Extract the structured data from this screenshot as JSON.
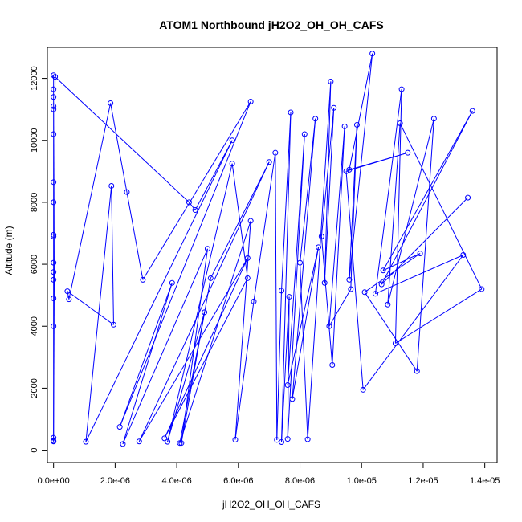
{
  "chart_data": {
    "type": "line",
    "title": "ATOM1 Northbound jH2O2_OH_OH_CAFS",
    "xlabel": "jH2O2_OH_OH_CAFS",
    "ylabel": "Altitude (m)",
    "xlim": [
      -2e-07,
      1.44e-05
    ],
    "ylim": [
      -400,
      13000
    ],
    "xticks": [
      0,
      2e-06,
      4e-06,
      6e-06,
      8e-06,
      1e-05,
      1.2e-05,
      1.4e-05
    ],
    "xtick_labels": [
      "0.0e+00",
      "2.0e-06",
      "4.0e-06",
      "6.0e-06",
      "8.0e-06",
      "1.0e-05",
      "1.2e-05",
      "1.4e-05"
    ],
    "yticks": [
      0,
      2000,
      4000,
      6000,
      8000,
      10000,
      12000
    ],
    "ytick_labels": [
      "0",
      "2000",
      "4000",
      "6000",
      "8000",
      "10000",
      "12000"
    ],
    "grid": false,
    "series": [
      {
        "color": "#0000ff",
        "marker": "open-circle",
        "points": [
          [
            0.0,
            12100
          ],
          [
            0.0,
            11650
          ],
          [
            0.0,
            11400
          ],
          [
            0.0,
            11100
          ],
          [
            0.0,
            11000
          ],
          [
            0.0,
            10200
          ],
          [
            0.0,
            8650
          ],
          [
            0.0,
            8000
          ],
          [
            0.0,
            6950
          ],
          [
            0.0,
            6900
          ],
          [
            0.0,
            6050
          ],
          [
            0.0,
            5750
          ],
          [
            0.0,
            5500
          ],
          [
            0.0,
            4900
          ],
          [
            0.0,
            4000
          ],
          [
            0.0,
            400
          ],
          [
            0.0,
            300
          ],
          [
            0.0,
            280
          ],
          [
            5e-08,
            12050
          ],
          [
            4.4e-06,
            8000
          ],
          [
            4.6e-06,
            7750
          ],
          [
            5.8e-06,
            10000
          ],
          [
            1.05e-06,
            270
          ],
          [
            1.88e-06,
            8530
          ],
          [
            1.95e-06,
            4050
          ],
          [
            4.5e-07,
            5130
          ],
          [
            5e-07,
            4870
          ],
          [
            1.85e-06,
            11200
          ],
          [
            2.38e-06,
            8330
          ],
          [
            2.9e-06,
            5500
          ],
          [
            6.4e-06,
            11250
          ],
          [
            2.15e-06,
            750
          ],
          [
            3.85e-06,
            5400
          ],
          [
            2.25e-06,
            200
          ],
          [
            5e-06,
            6500
          ],
          [
            4.15e-06,
            230
          ],
          [
            5.1e-06,
            5550
          ],
          [
            7e-06,
            9300
          ],
          [
            2.78e-06,
            280
          ],
          [
            6.3e-06,
            6200
          ],
          [
            3.6e-06,
            380
          ],
          [
            6.3e-06,
            5550
          ],
          [
            5.8e-06,
            9250
          ],
          [
            3.7e-06,
            270
          ],
          [
            4.9e-06,
            4450
          ],
          [
            4.1e-06,
            230
          ],
          [
            6.4e-06,
            7400
          ],
          [
            5.9e-06,
            340
          ],
          [
            6.5e-06,
            4800
          ],
          [
            7.2e-06,
            9600
          ],
          [
            7.25e-06,
            330
          ],
          [
            7.4e-06,
            5150
          ],
          [
            7.7e-06,
            10900
          ],
          [
            7.4e-06,
            260
          ],
          [
            7.65e-06,
            4950
          ],
          [
            7.6e-06,
            360
          ],
          [
            8.15e-06,
            10200
          ],
          [
            7.6e-06,
            2100
          ],
          [
            8.6e-06,
            6550
          ],
          [
            7.75e-06,
            1650
          ],
          [
            8.5e-06,
            10700
          ],
          [
            8e-06,
            6050
          ],
          [
            8.25e-06,
            350
          ],
          [
            9e-06,
            11900
          ],
          [
            8.8e-06,
            5400
          ],
          [
            9.1e-06,
            11050
          ],
          [
            8.7e-06,
            6900
          ],
          [
            9.05e-06,
            2750
          ],
          [
            9.45e-06,
            10450
          ],
          [
            8.95e-06,
            4000
          ],
          [
            9.65e-06,
            5200
          ],
          [
            9.85e-06,
            10500
          ],
          [
            9.6e-06,
            5500
          ],
          [
            1.035e-05,
            12800
          ],
          [
            9.6e-06,
            9050
          ],
          [
            1.15e-05,
            9600
          ],
          [
            9.5e-06,
            9000
          ],
          [
            1.005e-05,
            1950
          ],
          [
            1.33e-05,
            6300
          ],
          [
            1.045e-05,
            5050
          ],
          [
            1.13e-05,
            11650
          ],
          [
            1.11e-05,
            3450
          ],
          [
            1.39e-05,
            5200
          ],
          [
            1.125e-05,
            10550
          ],
          [
            1.085e-05,
            4700
          ],
          [
            1.235e-05,
            10700
          ],
          [
            1.18e-05,
            2550
          ],
          [
            1.01e-05,
            5100
          ],
          [
            1.19e-05,
            6350
          ],
          [
            1.07e-05,
            5800
          ],
          [
            1.36e-05,
            10950
          ],
          [
            1.065e-05,
            5350
          ],
          [
            1.345e-05,
            8150
          ]
        ]
      }
    ]
  }
}
